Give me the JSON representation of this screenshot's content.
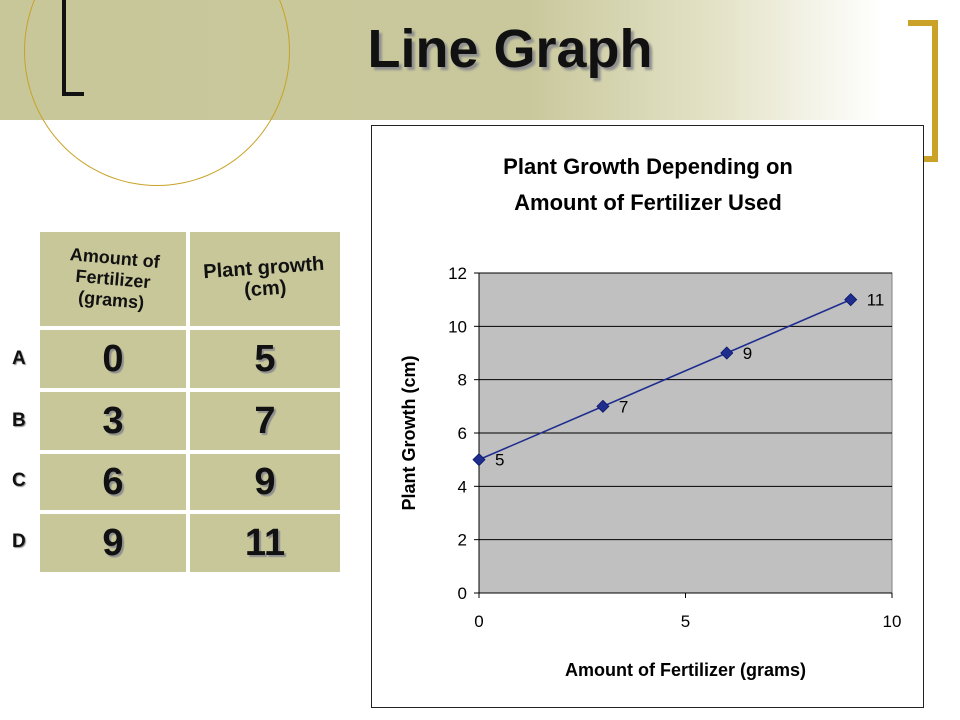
{
  "slide": {
    "title": "Line Graph"
  },
  "table": {
    "headers": [
      "Amount of\nFertilizer\n(grams)",
      "Plant growth\n(cm)"
    ],
    "row_labels": [
      "A",
      "B",
      "C",
      "D"
    ],
    "rows": [
      [
        "0",
        "5"
      ],
      [
        "3",
        "7"
      ],
      [
        "6",
        "9"
      ],
      [
        "9",
        "11"
      ]
    ]
  },
  "chart_data": {
    "type": "line",
    "title": "Plant Growth Depending on Amount of Fertilizer Used",
    "title_lines": [
      "Plant Growth Depending on",
      "Amount of Fertilizer Used"
    ],
    "xlabel": "Amount of Fertilizer (grams)",
    "ylabel": "Plant Growth (cm)",
    "x": [
      0,
      3,
      6,
      9
    ],
    "series": [
      {
        "values": [
          5,
          7,
          9,
          11
        ],
        "data_labels": [
          "5",
          "7",
          "9",
          "11"
        ]
      }
    ],
    "xlim": [
      0,
      10
    ],
    "ylim": [
      0,
      12
    ],
    "xticks": [
      0,
      5,
      10
    ],
    "yticks": [
      0,
      2,
      4,
      6,
      8,
      10,
      12
    ],
    "grid": "horizontal",
    "legend": "none",
    "colors": {
      "line": "#1f2d8f",
      "marker": "#1f2d8f",
      "plot_bg": "#c0c0c0"
    }
  }
}
